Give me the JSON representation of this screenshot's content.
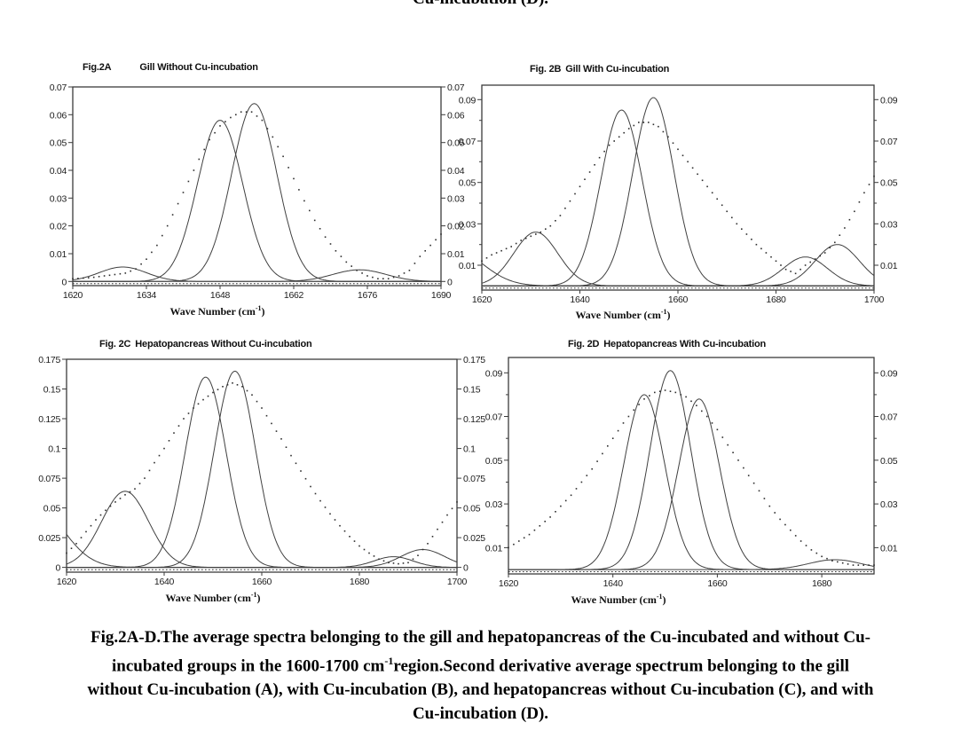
{
  "page": {
    "top_cropped_text": "Cu-incubation (D)."
  },
  "colors": {
    "axis": "#3b3b3b",
    "curve": "#404040",
    "dots": "#2e2e2e",
    "text": "#1a1a1a",
    "background": "#ffffff"
  },
  "xlabel": {
    "pre": "Wave Number (cm",
    "sup": "-1",
    "post": ")"
  },
  "caption": {
    "line1": "Fig.2A-D.The average spectra belonging to the gill and hepatopancreas of the Cu-incubated and without Cu-",
    "line2_pre": "incubated groups in the 1600-1700 cm",
    "line2_sup": "-1",
    "line2_post": "region.Second derivative average spectrum belonging to the gill",
    "line3": "without Cu-incubation (A), with Cu-incubation (B), and hepatopancreas without Cu-incubation (C), and with",
    "line4": "Cu-incubation (D)."
  },
  "chart_data": [
    {
      "id": "fig2a",
      "type": "line",
      "fig_label": "Fig.2A",
      "title": "Gill Without Cu-incubation",
      "xlim": [
        1620,
        1690
      ],
      "ylim": [
        -0.0015,
        0.07
      ],
      "xticks": [
        1620,
        1634,
        1648,
        1662,
        1676,
        1690
      ],
      "yticks": [
        {
          "v": 0,
          "label": "0"
        },
        {
          "v": 0.01,
          "label": "0.01"
        },
        {
          "v": 0.02,
          "label": "0.02"
        },
        {
          "v": 0.03,
          "label": "0.03"
        },
        {
          "v": 0.04,
          "label": "0.04"
        },
        {
          "v": 0.05,
          "label": "0.05"
        },
        {
          "v": 0.06,
          "label": "0.06"
        },
        {
          "v": 0.07,
          "label": "0.07"
        }
      ],
      "baseline_y": -0.0008,
      "series": [
        {
          "name": "component-band-1630",
          "kind": "gaussian",
          "center": 1629.5,
          "height": 0.0052,
          "sigma": 4.5
        },
        {
          "name": "component-band-1648",
          "kind": "gaussian",
          "center": 1648,
          "height": 0.058,
          "sigma": 4.3
        },
        {
          "name": "component-band-1654",
          "kind": "gaussian",
          "center": 1654.5,
          "height": 0.064,
          "sigma": 4.3
        },
        {
          "name": "component-band-1675",
          "kind": "gaussian",
          "center": 1674.5,
          "height": 0.0042,
          "sigma": 5
        },
        {
          "name": "average-spectrum",
          "kind": "dots",
          "points": [
            [
              1620,
              0.001
            ],
            [
              1622,
              0.0012
            ],
            [
              1624,
              0.0015
            ],
            [
              1626,
              0.002
            ],
            [
              1628,
              0.0025
            ],
            [
              1630,
              0.003
            ],
            [
              1632,
              0.0045
            ],
            [
              1634,
              0.008
            ],
            [
              1636,
              0.013
            ],
            [
              1638,
              0.02
            ],
            [
              1640,
              0.028
            ],
            [
              1642,
              0.036
            ],
            [
              1644,
              0.044
            ],
            [
              1646,
              0.051
            ],
            [
              1648,
              0.056
            ],
            [
              1650,
              0.059
            ],
            [
              1652,
              0.061
            ],
            [
              1654,
              0.061
            ],
            [
              1656,
              0.058
            ],
            [
              1658,
              0.052
            ],
            [
              1660,
              0.045
            ],
            [
              1662,
              0.037
            ],
            [
              1664,
              0.029
            ],
            [
              1666,
              0.022
            ],
            [
              1668,
              0.016
            ],
            [
              1670,
              0.011
            ],
            [
              1672,
              0.007
            ],
            [
              1674,
              0.004
            ],
            [
              1676,
              0.002
            ],
            [
              1678,
              0.001
            ],
            [
              1680,
              0.001
            ],
            [
              1682,
              0.002
            ],
            [
              1684,
              0.004
            ],
            [
              1686,
              0.009
            ],
            [
              1688,
              0.013
            ],
            [
              1690,
              0.017
            ]
          ]
        }
      ]
    },
    {
      "id": "fig2b",
      "type": "line",
      "fig_label": "Fig. 2B",
      "title": "Gill With Cu-incubation",
      "xlim": [
        1620,
        1700
      ],
      "ylim": [
        -0.002,
        0.097
      ],
      "xticks": [
        1620,
        1640,
        1660,
        1680,
        1700
      ],
      "yticks": [
        {
          "v": 0.01,
          "label": "0.01"
        },
        {
          "v": 0.02
        },
        {
          "v": 0.03,
          "label": "0.03"
        },
        {
          "v": 0.04
        },
        {
          "v": 0.05,
          "label": "0.05"
        },
        {
          "v": 0.06
        },
        {
          "v": 0.07,
          "label": "0.07"
        },
        {
          "v": 0.08
        },
        {
          "v": 0.09,
          "label": "0.09"
        }
      ],
      "baseline_y": -0.001,
      "series": [
        {
          "name": "left-edge-band",
          "kind": "gaussian",
          "center": 1614,
          "height": 0.018,
          "sigma": 6
        },
        {
          "name": "component-band-1631",
          "kind": "gaussian",
          "center": 1631,
          "height": 0.026,
          "sigma": 4.5
        },
        {
          "name": "component-band-1648",
          "kind": "gaussian",
          "center": 1648.5,
          "height": 0.085,
          "sigma": 4.2
        },
        {
          "name": "component-band-1655",
          "kind": "gaussian",
          "center": 1655,
          "height": 0.091,
          "sigma": 4.2
        },
        {
          "name": "component-band-1686",
          "kind": "gaussian",
          "center": 1686,
          "height": 0.014,
          "sigma": 4.5
        },
        {
          "name": "component-band-1692",
          "kind": "gaussian",
          "center": 1692.5,
          "height": 0.02,
          "sigma": 4.5
        },
        {
          "name": "average-spectrum",
          "kind": "dots",
          "points": [
            [
              1620,
              0.012
            ],
            [
              1622,
              0.015
            ],
            [
              1624,
              0.017
            ],
            [
              1626,
              0.019
            ],
            [
              1628,
              0.022
            ],
            [
              1630,
              0.024
            ],
            [
              1632,
              0.026
            ],
            [
              1634,
              0.029
            ],
            [
              1636,
              0.034
            ],
            [
              1638,
              0.041
            ],
            [
              1640,
              0.048
            ],
            [
              1642,
              0.055
            ],
            [
              1644,
              0.062
            ],
            [
              1646,
              0.068
            ],
            [
              1648,
              0.072
            ],
            [
              1650,
              0.076
            ],
            [
              1652,
              0.079
            ],
            [
              1654,
              0.079
            ],
            [
              1656,
              0.077
            ],
            [
              1658,
              0.072
            ],
            [
              1660,
              0.066
            ],
            [
              1662,
              0.06
            ],
            [
              1664,
              0.054
            ],
            [
              1666,
              0.048
            ],
            [
              1668,
              0.042
            ],
            [
              1670,
              0.036
            ],
            [
              1672,
              0.03
            ],
            [
              1674,
              0.025
            ],
            [
              1676,
              0.02
            ],
            [
              1678,
              0.016
            ],
            [
              1680,
              0.012
            ],
            [
              1682,
              0.008
            ],
            [
              1684,
              0.006
            ],
            [
              1686,
              0.01
            ],
            [
              1688,
              0.013
            ],
            [
              1690,
              0.016
            ],
            [
              1692,
              0.021
            ],
            [
              1694,
              0.028
            ],
            [
              1696,
              0.036
            ],
            [
              1698,
              0.045
            ],
            [
              1700,
              0.053
            ]
          ]
        }
      ]
    },
    {
      "id": "fig2c",
      "type": "line",
      "fig_label": "Fig. 2C",
      "title": "Hepatopancreas Without Cu-incubation",
      "xlim": [
        1620,
        1700
      ],
      "ylim": [
        -0.004,
        0.175
      ],
      "xticks": [
        1620,
        1640,
        1660,
        1680,
        1700
      ],
      "yticks": [
        {
          "v": 0,
          "label": "0"
        },
        {
          "v": 0.025,
          "label": "0.025"
        },
        {
          "v": 0.05,
          "label": "0.05"
        },
        {
          "v": 0.075,
          "label": "0.075"
        },
        {
          "v": 0.1,
          "label": "0.1"
        },
        {
          "v": 0.125,
          "label": "0.125"
        },
        {
          "v": 0.15,
          "label": "0.15"
        },
        {
          "v": 0.175,
          "label": "0.175"
        }
      ],
      "baseline_y": -0.002,
      "series": [
        {
          "name": "left-edge-band",
          "kind": "gaussian",
          "center": 1613,
          "height": 0.055,
          "sigma": 6
        },
        {
          "name": "component-band-1632",
          "kind": "gaussian",
          "center": 1632,
          "height": 0.064,
          "sigma": 4.8
        },
        {
          "name": "component-band-1648",
          "kind": "gaussian",
          "center": 1648.5,
          "height": 0.16,
          "sigma": 4.2
        },
        {
          "name": "component-band-1654",
          "kind": "gaussian",
          "center": 1654.5,
          "height": 0.165,
          "sigma": 4.2
        },
        {
          "name": "component-band-1687",
          "kind": "gaussian",
          "center": 1687,
          "height": 0.009,
          "sigma": 4
        },
        {
          "name": "component-band-1693",
          "kind": "gaussian",
          "center": 1693,
          "height": 0.015,
          "sigma": 4.5
        },
        {
          "name": "average-spectrum",
          "kind": "dots",
          "points": [
            [
              1620,
              0.012
            ],
            [
              1622,
              0.02
            ],
            [
              1624,
              0.03
            ],
            [
              1626,
              0.04
            ],
            [
              1628,
              0.048
            ],
            [
              1630,
              0.055
            ],
            [
              1632,
              0.061
            ],
            [
              1634,
              0.066
            ],
            [
              1636,
              0.075
            ],
            [
              1638,
              0.088
            ],
            [
              1640,
              0.1
            ],
            [
              1642,
              0.113
            ],
            [
              1644,
              0.125
            ],
            [
              1646,
              0.134
            ],
            [
              1648,
              0.141
            ],
            [
              1650,
              0.147
            ],
            [
              1652,
              0.152
            ],
            [
              1654,
              0.155
            ],
            [
              1656,
              0.152
            ],
            [
              1658,
              0.145
            ],
            [
              1660,
              0.134
            ],
            [
              1662,
              0.121
            ],
            [
              1664,
              0.108
            ],
            [
              1666,
              0.094
            ],
            [
              1668,
              0.081
            ],
            [
              1670,
              0.068
            ],
            [
              1672,
              0.056
            ],
            [
              1674,
              0.045
            ],
            [
              1676,
              0.035
            ],
            [
              1678,
              0.026
            ],
            [
              1680,
              0.018
            ],
            [
              1682,
              0.012
            ],
            [
              1684,
              0.007
            ],
            [
              1686,
              0.004
            ],
            [
              1688,
              0.003
            ],
            [
              1690,
              0.004
            ],
            [
              1692,
              0.01
            ],
            [
              1694,
              0.02
            ],
            [
              1696,
              0.032
            ],
            [
              1698,
              0.044
            ],
            [
              1700,
              0.055
            ]
          ]
        }
      ]
    },
    {
      "id": "fig2d",
      "type": "line",
      "fig_label": "Fig. 2D",
      "title": "Hepatopancreas With Cu-incubation",
      "xlim": [
        1620,
        1690
      ],
      "ylim": [
        -0.002,
        0.097
      ],
      "xticks": [
        1620,
        1640,
        1660,
        1680
      ],
      "yticks": [
        {
          "v": 0.01,
          "label": "0.01"
        },
        {
          "v": 0.02
        },
        {
          "v": 0.03,
          "label": "0.03"
        },
        {
          "v": 0.04
        },
        {
          "v": 0.05,
          "label": "0.05"
        },
        {
          "v": 0.06
        },
        {
          "v": 0.07,
          "label": "0.07"
        },
        {
          "v": 0.08
        },
        {
          "v": 0.09,
          "label": "0.09"
        }
      ],
      "baseline_y": -0.001,
      "series": [
        {
          "name": "component-band-1646",
          "kind": "gaussian",
          "center": 1646,
          "height": 0.08,
          "sigma": 3.9
        },
        {
          "name": "component-band-1651",
          "kind": "gaussian",
          "center": 1651,
          "height": 0.091,
          "sigma": 3.9
        },
        {
          "name": "component-band-1656",
          "kind": "gaussian",
          "center": 1656.5,
          "height": 0.078,
          "sigma": 3.9
        },
        {
          "name": "component-band-1682",
          "kind": "gaussian",
          "center": 1682.5,
          "height": 0.0045,
          "sigma": 5
        },
        {
          "name": "average-spectrum",
          "kind": "dots",
          "points": [
            [
              1620,
              0.01
            ],
            [
              1622,
              0.013
            ],
            [
              1624,
              0.016
            ],
            [
              1626,
              0.02
            ],
            [
              1628,
              0.024
            ],
            [
              1630,
              0.029
            ],
            [
              1632,
              0.034
            ],
            [
              1634,
              0.04
            ],
            [
              1636,
              0.046
            ],
            [
              1638,
              0.053
            ],
            [
              1640,
              0.06
            ],
            [
              1642,
              0.067
            ],
            [
              1644,
              0.073
            ],
            [
              1646,
              0.078
            ],
            [
              1648,
              0.081
            ],
            [
              1650,
              0.082
            ],
            [
              1652,
              0.081
            ],
            [
              1654,
              0.079
            ],
            [
              1656,
              0.075
            ],
            [
              1658,
              0.07
            ],
            [
              1660,
              0.064
            ],
            [
              1662,
              0.057
            ],
            [
              1664,
              0.05
            ],
            [
              1666,
              0.043
            ],
            [
              1668,
              0.036
            ],
            [
              1670,
              0.029
            ],
            [
              1672,
              0.023
            ],
            [
              1674,
              0.018
            ],
            [
              1676,
              0.013
            ],
            [
              1678,
              0.009
            ],
            [
              1680,
              0.006
            ],
            [
              1682,
              0.004
            ],
            [
              1684,
              0.003
            ],
            [
              1686,
              0.002
            ],
            [
              1688,
              0.002
            ],
            [
              1690,
              0.002
            ]
          ]
        }
      ]
    }
  ]
}
